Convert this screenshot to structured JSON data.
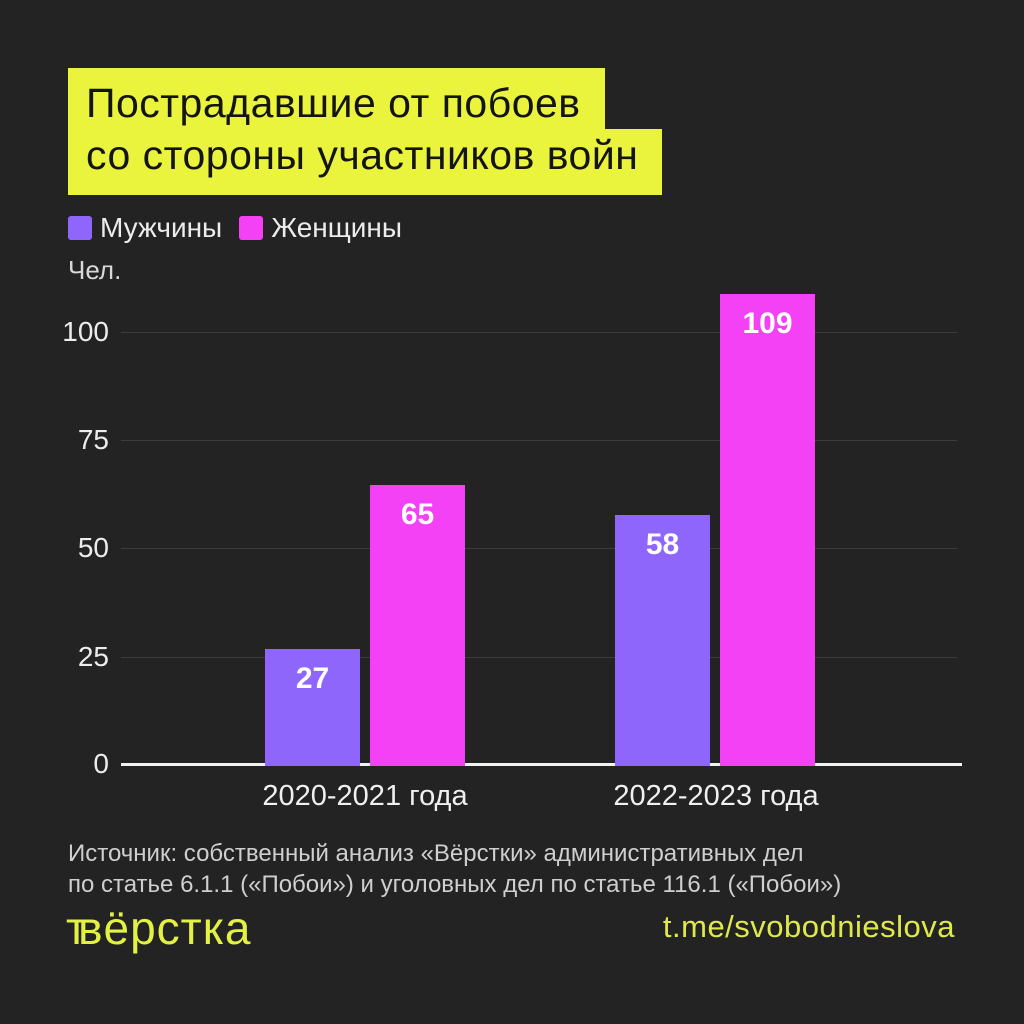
{
  "title": {
    "line1": "Пострадавшие от побоев",
    "line2": "со стороны участников войн"
  },
  "legend": {
    "men_label": "Мужчины",
    "women_label": "Женщины"
  },
  "unit_label": "Чел.",
  "chart_data": {
    "type": "bar",
    "categories": [
      "2020-2021 года",
      "2022-2023 года"
    ],
    "series": [
      {
        "name": "Мужчины",
        "color": "#8f66fb",
        "values": [
          27,
          58
        ]
      },
      {
        "name": "Женщины",
        "color": "#f441f6",
        "values": [
          65,
          109
        ]
      }
    ],
    "title": "Пострадавшие от побоев со стороны участников войн",
    "xlabel": "",
    "ylabel": "Чел.",
    "yticks": [
      0,
      25,
      50,
      75,
      100
    ],
    "ylim": [
      0,
      112
    ],
    "grid": "horizontal",
    "legend_position": "top-left"
  },
  "source": {
    "line1": "Источник: собственный анализ «Вёрстки» административных дел",
    "line2": "по статье 6.1.1 («Побои») и уголовных дел по статье 116.1 («Побои»)"
  },
  "footer": {
    "logo_prefix": "т",
    "logo_text": "вёрстка",
    "link": "t.me/svobodnieslova"
  },
  "colors": {
    "background": "#232323",
    "title_bg": "#eaf43d",
    "men": "#8f66fb",
    "women": "#f441f6",
    "accent_yellow": "#e3f044",
    "gridline": "#3c3c3e",
    "axis": "#f2f2f2"
  }
}
